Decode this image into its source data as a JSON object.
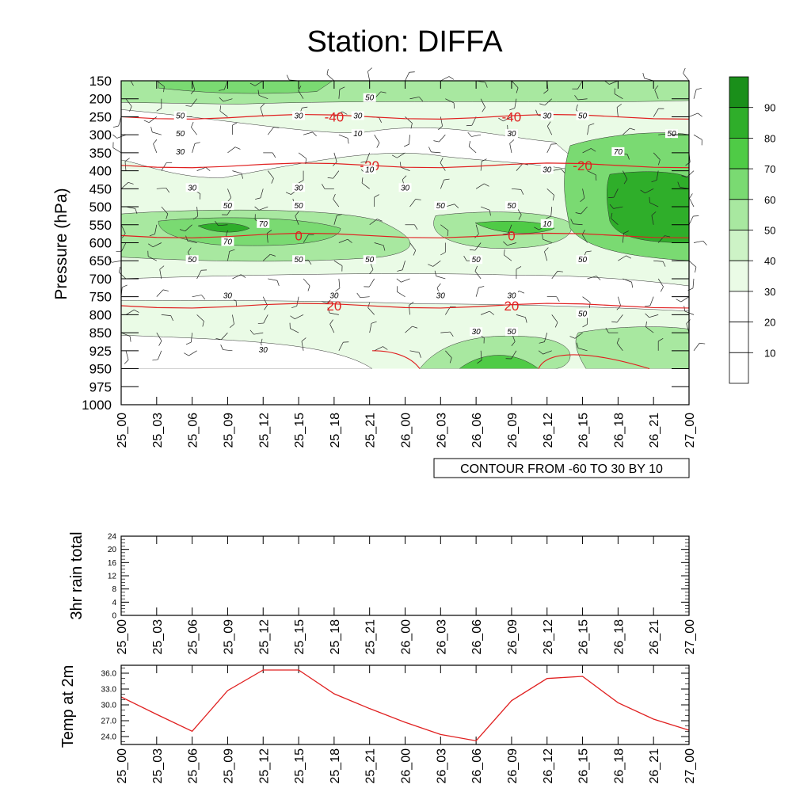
{
  "title": "Station: DIFFA",
  "time_ticks": [
    "25_00",
    "25_03",
    "25_06",
    "25_09",
    "25_12",
    "25_15",
    "25_18",
    "25_21",
    "26_00",
    "26_03",
    "26_06",
    "26_09",
    "26_12",
    "26_15",
    "26_18",
    "26_21",
    "27_00"
  ],
  "colors": {
    "temp_line": "#e02020",
    "contour_line": "#000000",
    "shade": [
      "#ffffff",
      "#ffffff",
      "#ffffff",
      "#eafbe6",
      "#cdf3c6",
      "#a8e8a0",
      "#7ada72",
      "#4fcb46",
      "#2fae2a",
      "#1a8f1a"
    ]
  },
  "chart_data": [
    {
      "type": "heatmap",
      "title": "Station: DIFFA",
      "ylabel": "Pressure (hPa)",
      "y_ticks": [
        150,
        200,
        250,
        300,
        350,
        400,
        450,
        500,
        550,
        600,
        650,
        700,
        750,
        800,
        850,
        925,
        950,
        975,
        1000
      ],
      "annotation": "CONTOUR FROM -60 TO 30 BY 10",
      "colorbar": {
        "levels": [
          10,
          20,
          30,
          40,
          50,
          60,
          70,
          80,
          90
        ],
        "labels": [
          "10",
          "20",
          "30",
          "40",
          "50",
          "60",
          "70",
          "80",
          "90"
        ]
      },
      "humidity_contour_labels": [
        {
          "t": "25_05",
          "p": 250,
          "v": "50"
        },
        {
          "t": "25_15",
          "p": 250,
          "v": "30"
        },
        {
          "t": "25_21",
          "p": 200,
          "v": "50"
        },
        {
          "t": "25_20",
          "p": 250,
          "v": "30"
        },
        {
          "t": "25_20",
          "p": 300,
          "v": "10"
        },
        {
          "t": "25_05",
          "p": 300,
          "v": "50"
        },
        {
          "t": "25_05",
          "p": 350,
          "v": "30"
        },
        {
          "t": "25_21",
          "p": 400,
          "v": "10"
        },
        {
          "t": "26_09",
          "p": 300,
          "v": "30"
        },
        {
          "t": "26_12",
          "p": 400,
          "v": "30"
        },
        {
          "t": "26_12",
          "p": 250,
          "v": "30"
        },
        {
          "t": "26_15",
          "p": 250,
          "v": "50"
        },
        {
          "t": "26_24",
          "p": 300,
          "v": "50"
        },
        {
          "t": "26_18",
          "p": 350,
          "v": "70"
        },
        {
          "t": "25_06",
          "p": 450,
          "v": "30"
        },
        {
          "t": "25_15",
          "p": 450,
          "v": "30"
        },
        {
          "t": "26_00",
          "p": 450,
          "v": "30"
        },
        {
          "t": "25_09",
          "p": 500,
          "v": "50"
        },
        {
          "t": "25_15",
          "p": 500,
          "v": "50"
        },
        {
          "t": "26_03",
          "p": 500,
          "v": "50"
        },
        {
          "t": "26_09",
          "p": 500,
          "v": "50"
        },
        {
          "t": "26_12",
          "p": 550,
          "v": "10"
        },
        {
          "t": "25_12",
          "p": 550,
          "v": "70"
        },
        {
          "t": "25_09",
          "p": 600,
          "v": "70"
        },
        {
          "t": "25_06",
          "p": 650,
          "v": "50"
        },
        {
          "t": "25_15",
          "p": 650,
          "v": "50"
        },
        {
          "t": "25_21",
          "p": 650,
          "v": "50"
        },
        {
          "t": "26_06",
          "p": 650,
          "v": "50"
        },
        {
          "t": "26_15",
          "p": 650,
          "v": "50"
        },
        {
          "t": "25_09",
          "p": 750,
          "v": "30"
        },
        {
          "t": "25_18",
          "p": 750,
          "v": "30"
        },
        {
          "t": "26_03",
          "p": 750,
          "v": "30"
        },
        {
          "t": "26_09",
          "p": 750,
          "v": "30"
        },
        {
          "t": "26_15",
          "p": 800,
          "v": "50"
        },
        {
          "t": "26_06",
          "p": 850,
          "v": "30"
        },
        {
          "t": "26_09",
          "p": 850,
          "v": "50"
        },
        {
          "t": "25_12",
          "p": 925,
          "v": "30"
        }
      ],
      "temperature_contours": [
        {
          "value": "-40",
          "p": 250,
          "label_t": [
            "25_18",
            "26_09"
          ]
        },
        {
          "value": "-20",
          "p": 385,
          "label_t": [
            "25_21",
            "26_15"
          ]
        },
        {
          "value": "0",
          "p": 580,
          "label_t": [
            "25_15",
            "26_09"
          ]
        },
        {
          "value": "20",
          "p": 775,
          "label_t": [
            "25_18",
            "26_09"
          ]
        }
      ]
    },
    {
      "type": "line",
      "ylabel": "3hr rain total",
      "ylim": [
        0,
        24
      ],
      "y_ticks": [
        "0",
        "4",
        "8",
        "12",
        "16",
        "20",
        "24"
      ],
      "series": [
        {
          "values": [
            0,
            0,
            0,
            0,
            0,
            0,
            0,
            0,
            0,
            0,
            0,
            0,
            0,
            0,
            0,
            0,
            0
          ]
        }
      ]
    },
    {
      "type": "line",
      "ylabel": "Temp at 2m",
      "ylim": [
        22.5,
        37.5
      ],
      "y_ticks": [
        "24.0",
        "27.0",
        "30.0",
        "33.0",
        "36.0"
      ],
      "series": [
        {
          "values": [
            31.5,
            28.2,
            25.0,
            32.7,
            36.6,
            36.6,
            32.1,
            29.3,
            26.7,
            24.4,
            23.2,
            30.8,
            35.0,
            35.4,
            30.4,
            27.3,
            25.2
          ]
        }
      ]
    }
  ]
}
